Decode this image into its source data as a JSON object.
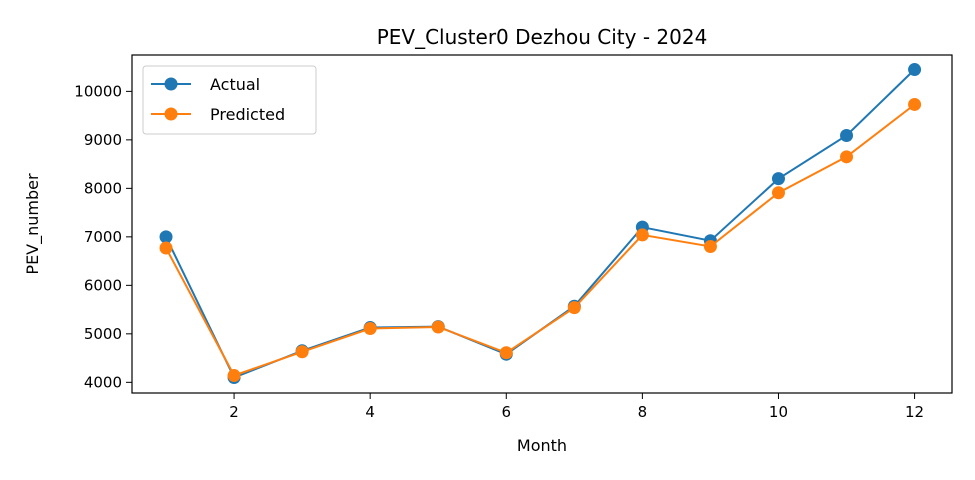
{
  "chart_data": {
    "type": "line",
    "title": "PEV_Cluster0 Dezhou City - 2024",
    "xlabel": "Month",
    "ylabel": "PEV_number",
    "x": [
      1,
      2,
      3,
      4,
      5,
      6,
      7,
      8,
      9,
      10,
      11,
      12
    ],
    "xlim": [
      0.5,
      12.55
    ],
    "ylim": [
      3780,
      10750
    ],
    "xticks": [
      2,
      4,
      6,
      8,
      10,
      12
    ],
    "yticks": [
      4000,
      5000,
      6000,
      7000,
      8000,
      9000,
      10000
    ],
    "grid": false,
    "legend_position": "top-left",
    "series": [
      {
        "name": "Actual",
        "color": "#1f77b4",
        "marker": "circle",
        "values": [
          7000,
          4100,
          4650,
          5130,
          5150,
          4580,
          5570,
          7200,
          6920,
          8200,
          9090,
          10450
        ]
      },
      {
        "name": "Predicted",
        "color": "#ff7f0e",
        "marker": "circle",
        "values": [
          6770,
          4140,
          4630,
          5110,
          5140,
          4610,
          5540,
          7040,
          6800,
          7910,
          8650,
          9730
        ]
      }
    ]
  }
}
